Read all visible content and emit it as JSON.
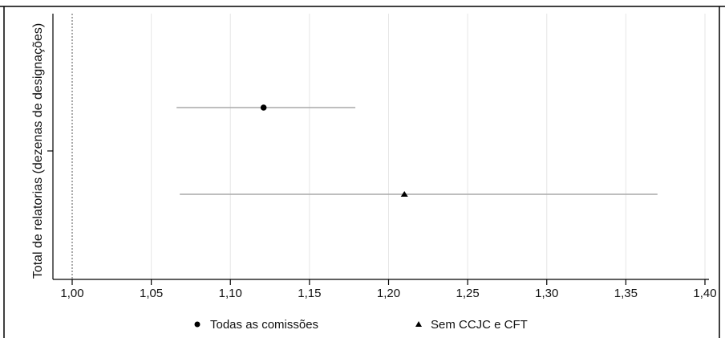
{
  "chart_data": {
    "type": "scatter",
    "title": "",
    "xlabel": "",
    "ylabel": "Total de relatorias (dezenas de designações)",
    "xlim": [
      1.0,
      1.4
    ],
    "x_ticks": [
      1.0,
      1.05,
      1.1,
      1.15,
      1.2,
      1.25,
      1.3,
      1.35,
      1.4
    ],
    "x_tick_labels": [
      "1,00",
      "1,05",
      "1,10",
      "1,15",
      "1,20",
      "1,25",
      "1,30",
      "1,35",
      "1,40"
    ],
    "reference_line_x": 1.0,
    "grid": "vertical",
    "legend_position": "bottom",
    "series": [
      {
        "name": "Todas as comissões",
        "marker": "circle",
        "estimate": 1.121,
        "ci_low": 1.066,
        "ci_high": 1.179
      },
      {
        "name": "Sem CCJC e CFT",
        "marker": "triangle",
        "estimate": 1.21,
        "ci_low": 1.068,
        "ci_high": 1.37
      }
    ],
    "colors": {
      "point": "#000000",
      "ci_line": "#a9a9a9",
      "grid": "#e6e6e6",
      "reference": "#555555"
    }
  }
}
